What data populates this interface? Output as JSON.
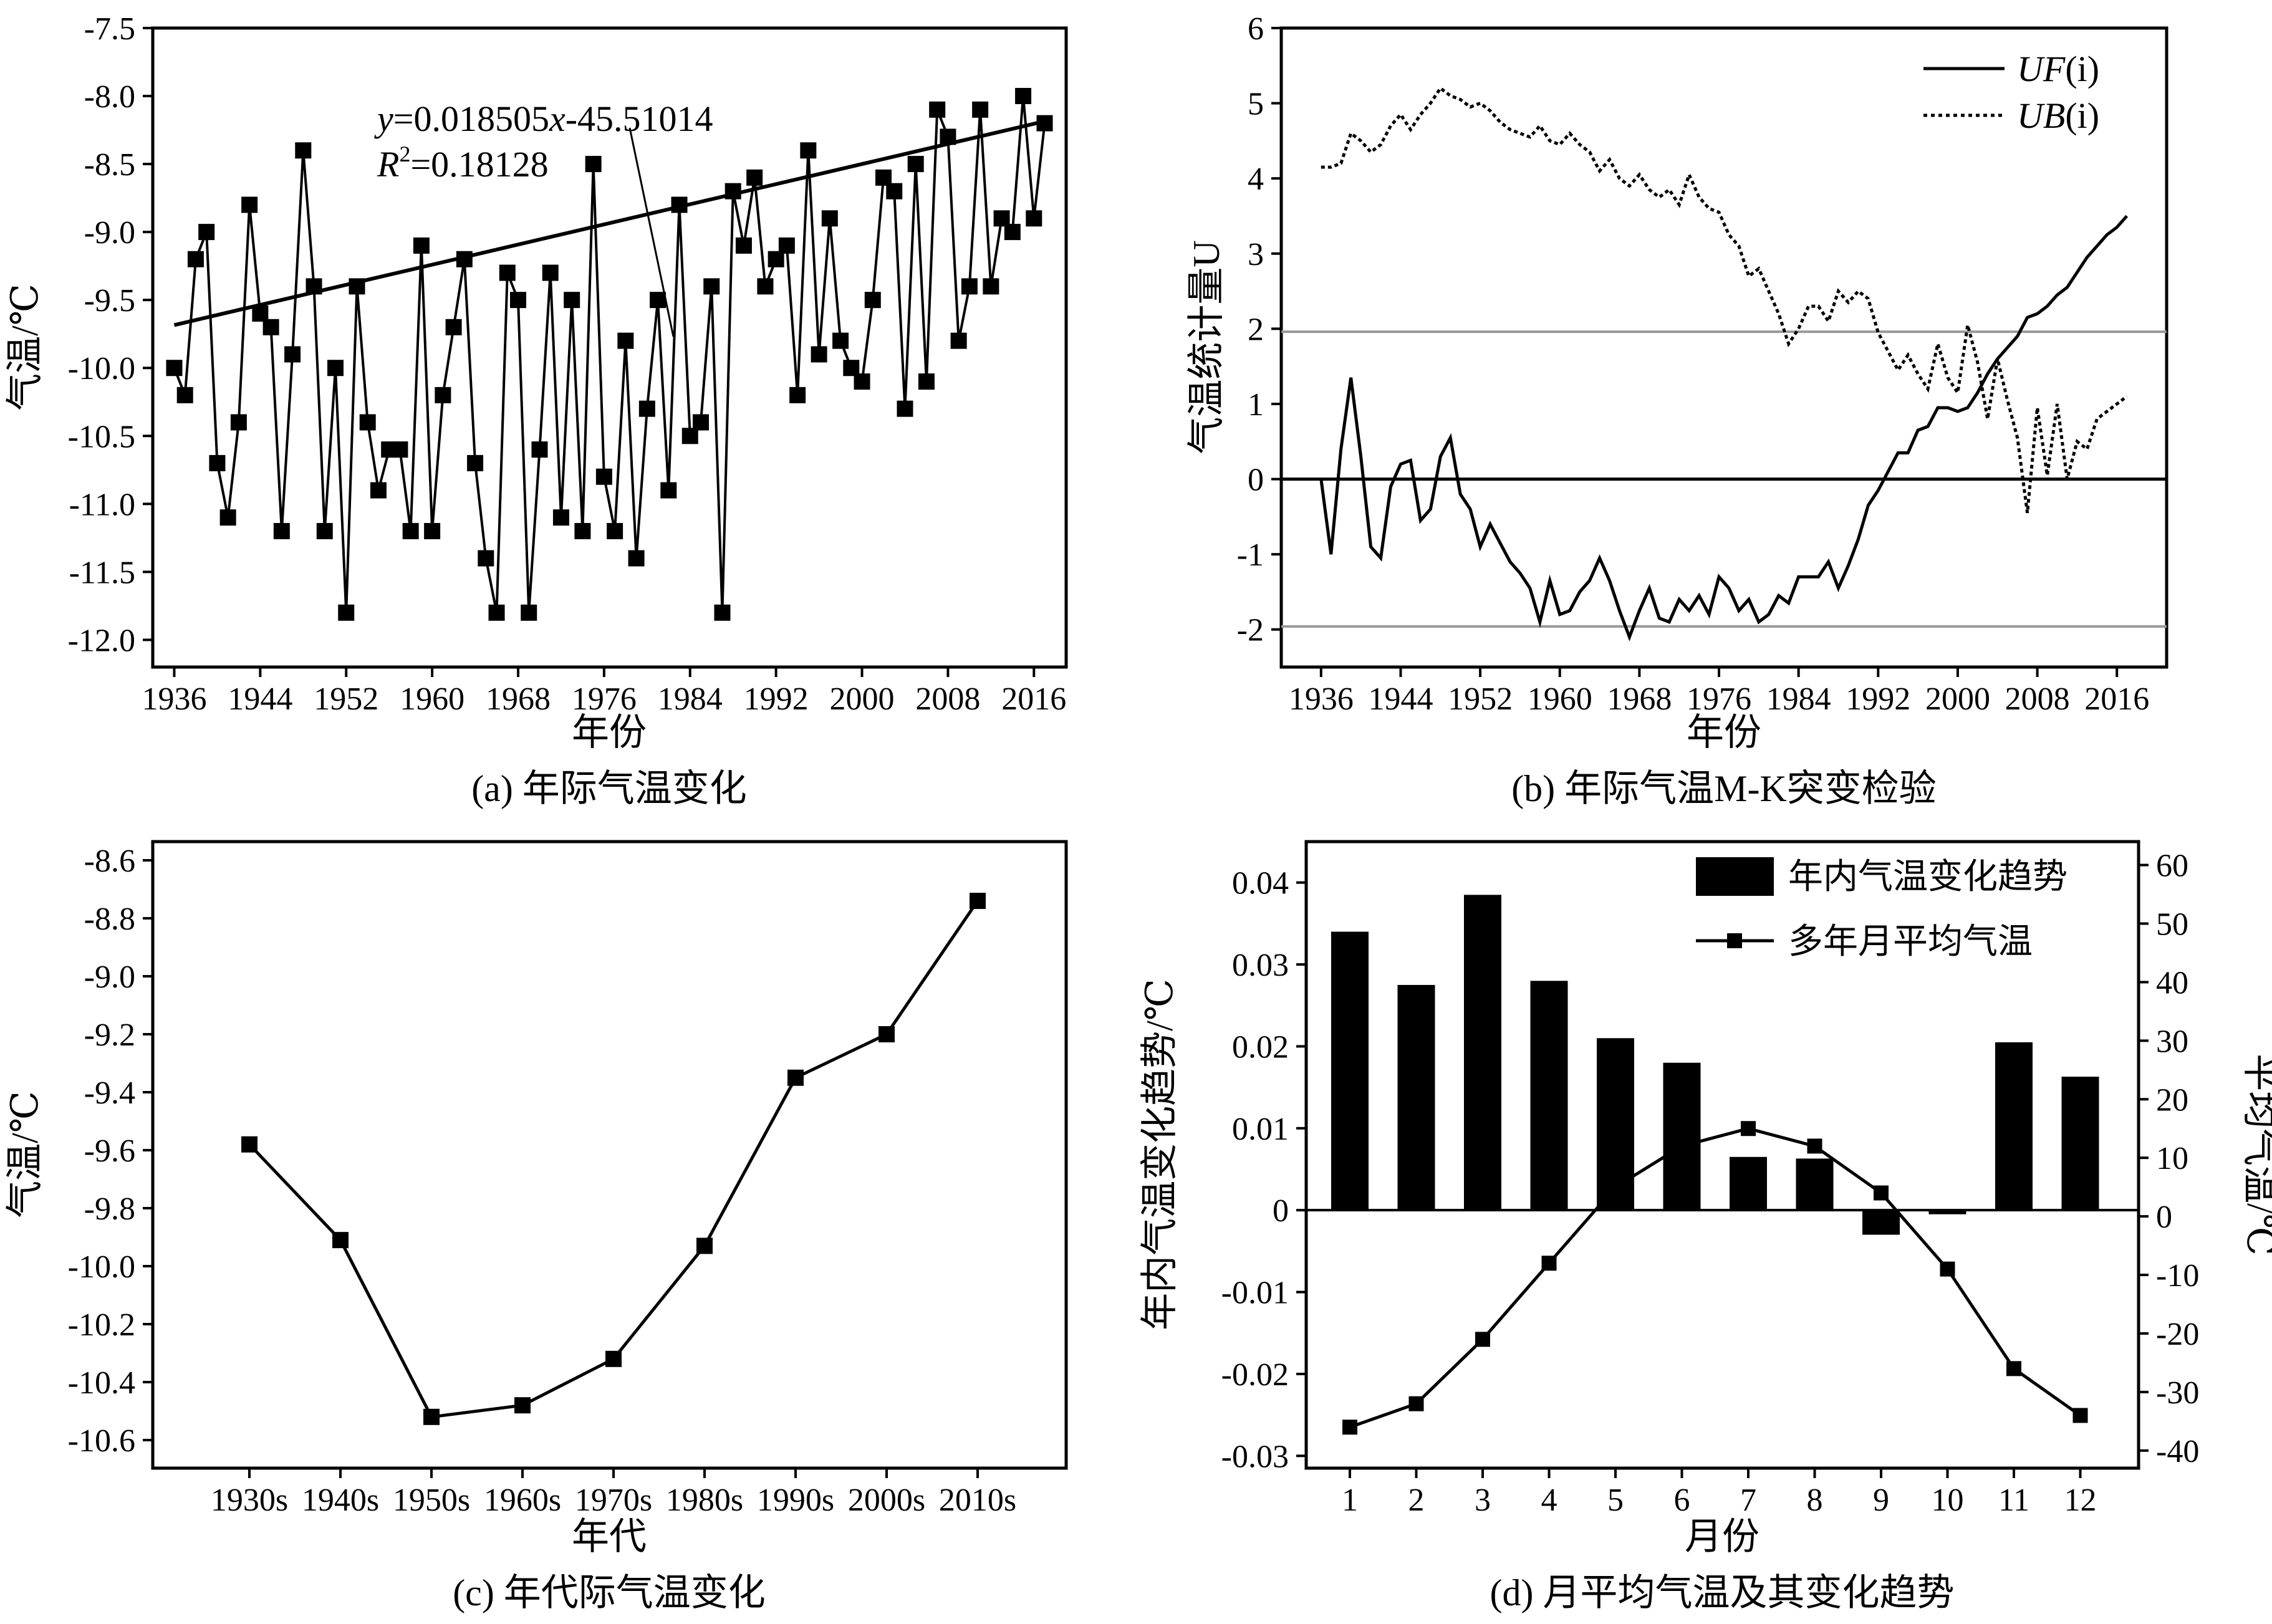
{
  "panels": {
    "a": {
      "caption": "(a) 年际气温变化",
      "xlabel": "年份",
      "ylabel": "气温/℃",
      "equation_y": "y",
      "equation_rest": "=0.018505",
      "equation_x": "x",
      "equation_tail": "-45.51014",
      "r2_r": "R",
      "r2_sup": "2",
      "r2_value": "=0.18128"
    },
    "b": {
      "caption": "(b) 年际气温M-K突变检验",
      "xlabel": "年份",
      "ylabel": "气温统计量U",
      "legend_uf_italic": "UF",
      "legend_uf_suffix": "(i)",
      "legend_ub_italic": "UB",
      "legend_ub_suffix": "(i)"
    },
    "c": {
      "caption": "(c) 年代际气温变化",
      "xlabel": "年代",
      "ylabel": "气温/℃"
    },
    "d": {
      "caption": "(d) 月平均气温及其变化趋势",
      "xlabel": "月份",
      "ylabel_left": "年内气温变化趋势/℃",
      "ylabel_right": "平均气温/℃",
      "legend_bar": "年内气温变化趋势",
      "legend_line": "多年月平均气温"
    }
  },
  "chart_data": [
    {
      "id": "a",
      "type": "line",
      "xlim": [
        1934,
        2019
      ],
      "ylim": [
        -12.2,
        -7.5
      ],
      "xticks": [
        1936,
        1944,
        1952,
        1960,
        1968,
        1976,
        1984,
        1992,
        2000,
        2008,
        2016
      ],
      "yticks": [
        -7.5,
        -8.0,
        -8.5,
        -9.0,
        -9.5,
        -10.0,
        -10.5,
        -11.0,
        -11.5,
        -12.0
      ],
      "ytick_labels": [
        "-7.5",
        "-8.0",
        "-8.5",
        "-9.0",
        "-9.5",
        "-10.0",
        "-10.5",
        "-11.0",
        "-11.5",
        "-12.0"
      ],
      "x": [
        1936,
        1937,
        1938,
        1939,
        1940,
        1941,
        1942,
        1943,
        1944,
        1945,
        1946,
        1947,
        1948,
        1949,
        1950,
        1951,
        1952,
        1953,
        1954,
        1955,
        1956,
        1957,
        1958,
        1959,
        1960,
        1961,
        1962,
        1963,
        1964,
        1965,
        1966,
        1967,
        1968,
        1969,
        1970,
        1971,
        1972,
        1973,
        1974,
        1975,
        1976,
        1977,
        1978,
        1979,
        1980,
        1981,
        1982,
        1983,
        1984,
        1985,
        1986,
        1987,
        1988,
        1989,
        1990,
        1991,
        1992,
        1993,
        1994,
        1995,
        1996,
        1997,
        1998,
        1999,
        2000,
        2001,
        2002,
        2003,
        2004,
        2005,
        2006,
        2007,
        2008,
        2009,
        2010,
        2011,
        2012,
        2013,
        2014,
        2015,
        2016,
        2017
      ],
      "y": [
        -10.0,
        -10.2,
        -9.2,
        -9.0,
        -10.7,
        -11.1,
        -10.4,
        -8.8,
        -9.6,
        -9.7,
        -11.2,
        -9.9,
        -8.4,
        -9.4,
        -11.2,
        -10.0,
        -11.8,
        -9.4,
        -10.4,
        -10.9,
        -10.6,
        -10.6,
        -11.2,
        -9.1,
        -11.2,
        -10.2,
        -9.7,
        -9.2,
        -10.7,
        -11.4,
        -11.8,
        -9.3,
        -9.5,
        -11.8,
        -10.6,
        -9.3,
        -11.1,
        -9.5,
        -11.2,
        -8.5,
        -10.8,
        -11.2,
        -9.8,
        -11.4,
        -10.3,
        -9.5,
        -10.9,
        -8.8,
        -10.5,
        -10.4,
        -9.4,
        -11.8,
        -8.7,
        -9.1,
        -8.6,
        -9.4,
        -9.2,
        -9.1,
        -10.2,
        -8.4,
        -9.9,
        -8.9,
        -9.8,
        -10.0,
        -10.1,
        -9.5,
        -8.6,
        -8.7,
        -10.3,
        -8.5,
        -10.1,
        -8.1,
        -8.3,
        -9.8,
        -9.4,
        -8.1,
        -9.4,
        -8.9,
        -9.0,
        -8.0,
        -8.9,
        -8.2
      ],
      "trend": {
        "slope": 0.018505,
        "intercept": -45.51014,
        "x_range": [
          1936,
          2017
        ]
      }
    },
    {
      "id": "b",
      "type": "line",
      "xlim": [
        1932,
        2021
      ],
      "ylim": [
        -2.5,
        6
      ],
      "xticks": [
        1936,
        1944,
        1952,
        1960,
        1968,
        1976,
        1984,
        1992,
        2000,
        2008,
        2016
      ],
      "yticks": [
        -2,
        -1,
        0,
        1,
        2,
        3,
        4,
        5,
        6
      ],
      "hlines": [
        {
          "y": 1.96,
          "color": "#999999"
        },
        {
          "y": -1.96,
          "color": "#999999"
        },
        {
          "y": 0,
          "color": "#000000"
        }
      ],
      "series": [
        {
          "name": "UF(i)",
          "style": "solid",
          "x": [
            1936,
            1937,
            1938,
            1939,
            1940,
            1941,
            1942,
            1943,
            1944,
            1945,
            1946,
            1947,
            1948,
            1949,
            1950,
            1951,
            1952,
            1953,
            1954,
            1955,
            1956,
            1957,
            1958,
            1959,
            1960,
            1961,
            1962,
            1963,
            1964,
            1965,
            1966,
            1967,
            1968,
            1969,
            1970,
            1971,
            1972,
            1973,
            1974,
            1975,
            1976,
            1977,
            1978,
            1979,
            1980,
            1981,
            1982,
            1983,
            1984,
            1985,
            1986,
            1987,
            1988,
            1989,
            1990,
            1991,
            1992,
            1993,
            1994,
            1995,
            1996,
            1997,
            1998,
            1999,
            2000,
            2001,
            2002,
            2003,
            2004,
            2005,
            2006,
            2007,
            2008,
            2009,
            2010,
            2011,
            2012,
            2013,
            2014,
            2015,
            2016,
            2017
          ],
          "y": [
            0.0,
            -1.0,
            0.4,
            1.35,
            0.3,
            -0.9,
            -1.05,
            -0.1,
            0.2,
            0.25,
            -0.55,
            -0.4,
            0.3,
            0.55,
            -0.2,
            -0.4,
            -0.9,
            -0.6,
            -0.85,
            -1.1,
            -1.25,
            -1.45,
            -1.9,
            -1.35,
            -1.8,
            -1.75,
            -1.5,
            -1.35,
            -1.05,
            -1.35,
            -1.75,
            -2.1,
            -1.75,
            -1.45,
            -1.85,
            -1.9,
            -1.6,
            -1.75,
            -1.55,
            -1.8,
            -1.3,
            -1.45,
            -1.75,
            -1.6,
            -1.9,
            -1.8,
            -1.55,
            -1.65,
            -1.3,
            -1.3,
            -1.3,
            -1.1,
            -1.45,
            -1.15,
            -0.8,
            -0.35,
            -0.15,
            0.1,
            0.35,
            0.35,
            0.65,
            0.7,
            0.95,
            0.95,
            0.9,
            0.95,
            1.15,
            1.4,
            1.6,
            1.75,
            1.9,
            2.15,
            2.2,
            2.3,
            2.45,
            2.55,
            2.75,
            2.95,
            3.1,
            3.25,
            3.35,
            3.5
          ]
        },
        {
          "name": "UB(i)",
          "style": "dotted",
          "x": [
            1936,
            1937,
            1938,
            1939,
            1940,
            1941,
            1942,
            1943,
            1944,
            1945,
            1946,
            1947,
            1948,
            1949,
            1950,
            1951,
            1952,
            1953,
            1954,
            1955,
            1956,
            1957,
            1958,
            1959,
            1960,
            1961,
            1962,
            1963,
            1964,
            1965,
            1966,
            1967,
            1968,
            1969,
            1970,
            1971,
            1972,
            1973,
            1974,
            1975,
            1976,
            1977,
            1978,
            1979,
            1980,
            1981,
            1982,
            1983,
            1984,
            1985,
            1986,
            1987,
            1988,
            1989,
            1990,
            1991,
            1992,
            1993,
            1994,
            1995,
            1996,
            1997,
            1998,
            1999,
            2000,
            2001,
            2002,
            2003,
            2004,
            2005,
            2006,
            2007,
            2008,
            2009,
            2010,
            2011,
            2012,
            2013,
            2014,
            2015,
            2016,
            2017
          ],
          "y": [
            4.15,
            4.15,
            4.2,
            4.6,
            4.5,
            4.35,
            4.45,
            4.7,
            4.85,
            4.65,
            4.85,
            5.0,
            5.2,
            5.1,
            5.05,
            4.95,
            5.0,
            4.9,
            4.75,
            4.65,
            4.6,
            4.55,
            4.7,
            4.5,
            4.45,
            4.6,
            4.45,
            4.35,
            4.1,
            4.25,
            4.0,
            3.9,
            4.05,
            3.85,
            3.75,
            3.85,
            3.65,
            4.05,
            3.75,
            3.6,
            3.55,
            3.25,
            3.1,
            2.7,
            2.8,
            2.5,
            2.2,
            1.8,
            2.0,
            2.3,
            2.3,
            2.1,
            2.5,
            2.35,
            2.5,
            2.4,
            1.95,
            1.7,
            1.45,
            1.65,
            1.4,
            1.2,
            1.8,
            1.35,
            1.15,
            2.05,
            1.55,
            0.8,
            1.6,
            1.05,
            0.55,
            -0.45,
            0.95,
            0.05,
            1.0,
            0.0,
            0.5,
            0.4,
            0.8,
            0.9,
            1.0,
            1.1
          ]
        }
      ]
    },
    {
      "id": "c",
      "type": "line",
      "categories": [
        "1930s",
        "1940s",
        "1950s",
        "1960s",
        "1970s",
        "1980s",
        "1990s",
        "2000s",
        "2010s"
      ],
      "values": [
        -9.58,
        -9.91,
        -10.52,
        -10.48,
        -10.32,
        -9.93,
        -9.35,
        -9.2,
        -8.74
      ],
      "ylim": [
        -10.6,
        -8.6
      ],
      "yticks": [
        -8.6,
        -8.8,
        -9.0,
        -9.2,
        -9.4,
        -9.6,
        -9.8,
        -10.0,
        -10.2,
        -10.4,
        -10.6
      ],
      "ytick_labels": [
        "-8.6",
        "-8.8",
        "-9.0",
        "-9.2",
        "-9.4",
        "-9.6",
        "-9.8",
        "-10.0",
        "-10.2",
        "-10.4",
        "-10.6"
      ]
    },
    {
      "id": "d",
      "type": "bar",
      "categories": [
        "1",
        "2",
        "3",
        "4",
        "5",
        "6",
        "7",
        "8",
        "9",
        "10",
        "11",
        "12"
      ],
      "series": [
        {
          "name": "年内气温变化趋势",
          "type": "bar",
          "axis": "left",
          "values": [
            0.034,
            0.0275,
            0.0385,
            0.028,
            0.021,
            0.018,
            0.0065,
            0.0063,
            -0.003,
            -0.0005,
            0.0205,
            0.0163
          ]
        },
        {
          "name": "多年月平均气温",
          "type": "line",
          "axis": "right",
          "values": [
            -36,
            -32,
            -21,
            -8,
            5,
            12,
            15,
            12,
            4,
            -9,
            -26,
            -34
          ]
        }
      ],
      "ylim_left": [
        -0.0315,
        0.045
      ],
      "yticks_left": [
        -0.03,
        -0.02,
        -0.01,
        0,
        0.01,
        0.02,
        0.03,
        0.04
      ],
      "ytick_labels_left": [
        "-0.03",
        "-0.02",
        "-0.01",
        "0",
        "0.01",
        "0.02",
        "0.03",
        "0.04"
      ],
      "ylim_right": [
        -43,
        64
      ],
      "yticks_right": [
        -40,
        -30,
        -20,
        -10,
        0,
        10,
        20,
        30,
        40,
        50,
        60
      ],
      "zero_line": true
    }
  ]
}
